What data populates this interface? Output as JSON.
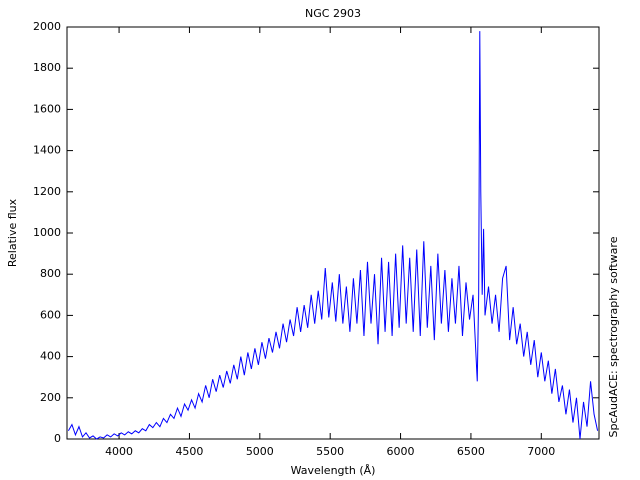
{
  "chart_data": {
    "type": "line",
    "title": "NGC 2903",
    "x_label": "Wavelength (Å)",
    "y_label": "Relative flux",
    "right_label": "SpcAudACE: spectrography software",
    "x": [
      3640,
      3665,
      3690,
      3715,
      3740,
      3765,
      3790,
      3815,
      3840,
      3865,
      3890,
      3915,
      3940,
      3965,
      3990,
      4015,
      4040,
      4065,
      4090,
      4115,
      4140,
      4165,
      4190,
      4215,
      4240,
      4265,
      4290,
      4315,
      4340,
      4365,
      4390,
      4415,
      4440,
      4465,
      4490,
      4515,
      4540,
      4565,
      4590,
      4615,
      4640,
      4665,
      4690,
      4715,
      4740,
      4765,
      4790,
      4815,
      4840,
      4865,
      4890,
      4915,
      4940,
      4965,
      4990,
      5015,
      5040,
      5065,
      5090,
      5115,
      5140,
      5165,
      5190,
      5215,
      5240,
      5265,
      5290,
      5315,
      5340,
      5365,
      5390,
      5415,
      5440,
      5465,
      5490,
      5515,
      5540,
      5565,
      5590,
      5615,
      5640,
      5665,
      5690,
      5715,
      5740,
      5765,
      5790,
      5815,
      5840,
      5865,
      5890,
      5915,
      5940,
      5965,
      5990,
      6015,
      6040,
      6065,
      6090,
      6115,
      6140,
      6165,
      6190,
      6215,
      6240,
      6265,
      6290,
      6315,
      6340,
      6365,
      6390,
      6415,
      6440,
      6465,
      6490,
      6515,
      6535,
      6545,
      6555,
      6563,
      6570,
      6580,
      6590,
      6600,
      6625,
      6650,
      6675,
      6700,
      6725,
      6750,
      6775,
      6800,
      6825,
      6850,
      6875,
      6900,
      6925,
      6950,
      6975,
      7000,
      7025,
      7050,
      7075,
      7100,
      7125,
      7150,
      7175,
      7200,
      7225,
      7250,
      7275,
      7300,
      7325,
      7350,
      7375,
      7400
    ],
    "series": [
      {
        "color": "#0000ff",
        "values": [
          40,
          70,
          20,
          60,
          10,
          30,
          5,
          15,
          0,
          10,
          5,
          20,
          10,
          25,
          15,
          30,
          20,
          35,
          25,
          40,
          30,
          50,
          40,
          70,
          55,
          80,
          60,
          100,
          80,
          120,
          100,
          150,
          110,
          170,
          140,
          190,
          150,
          220,
          180,
          260,
          200,
          290,
          230,
          310,
          250,
          330,
          270,
          360,
          290,
          400,
          310,
          420,
          340,
          440,
          360,
          470,
          390,
          490,
          420,
          520,
          440,
          560,
          470,
          580,
          500,
          640,
          520,
          650,
          540,
          700,
          560,
          720,
          580,
          830,
          590,
          760,
          570,
          800,
          560,
          740,
          520,
          780,
          560,
          820,
          500,
          860,
          560,
          800,
          460,
          880,
          520,
          860,
          500,
          900,
          540,
          940,
          560,
          880,
          520,
          920,
          500,
          960,
          540,
          840,
          480,
          900,
          560,
          820,
          520,
          780,
          560,
          840,
          500,
          760,
          580,
          700,
          420,
          280,
          700,
          1980,
          1200,
          700,
          1020,
          600,
          740,
          560,
          700,
          520,
          780,
          840,
          480,
          640,
          460,
          560,
          400,
          520,
          360,
          480,
          300,
          420,
          280,
          380,
          220,
          340,
          180,
          260,
          120,
          240,
          80,
          200,
          0,
          180,
          60,
          280,
          120,
          40
        ]
      }
    ],
    "xlim": [
      3630,
      7410
    ],
    "ylim": [
      0,
      2000
    ],
    "xticks": [
      4000,
      4500,
      5000,
      5500,
      6000,
      6500,
      7000
    ],
    "yticks": [
      0,
      200,
      400,
      600,
      800,
      1000,
      1200,
      1400,
      1600,
      1800,
      2000
    ]
  }
}
